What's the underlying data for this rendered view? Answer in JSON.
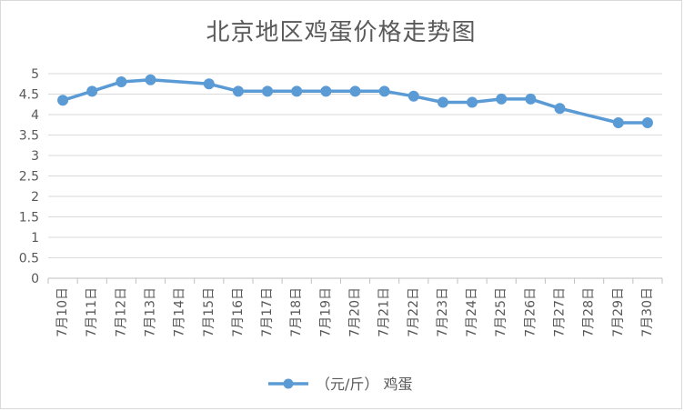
{
  "chart_data": {
    "type": "line",
    "title": "北京地区鸡蛋价格走势图",
    "categories": [
      "7月10日",
      "7月11日",
      "7月12日",
      "7月13日",
      "7月14日",
      "7月15日",
      "7月16日",
      "7月17日",
      "7月18日",
      "7月19日",
      "7月20日",
      "7月21日",
      "7月22日",
      "7月23日",
      "7月24日",
      "7月25日",
      "7月26日",
      "7月27日",
      "7月28日",
      "7月29日",
      "7月30日"
    ],
    "series": [
      {
        "name": "（元/斤） 鸡蛋",
        "color": "#5b9bd5",
        "values": [
          4.35,
          4.57,
          4.8,
          4.85,
          null,
          4.75,
          4.57,
          4.57,
          4.57,
          4.57,
          4.57,
          4.57,
          4.45,
          4.3,
          4.3,
          4.38,
          4.38,
          4.15,
          null,
          3.8,
          3.8
        ]
      }
    ],
    "xlabel": "",
    "ylabel": "",
    "ylim": [
      0,
      5
    ],
    "yticks": [
      "0",
      "0.5",
      "1",
      "1.5",
      "2",
      "2.5",
      "3",
      "3.5",
      "4",
      "4.5",
      "5"
    ],
    "grid": true,
    "legend_position": "bottom",
    "grid_color": "#d9d9d9",
    "axis_color": "#bfbfbf"
  }
}
